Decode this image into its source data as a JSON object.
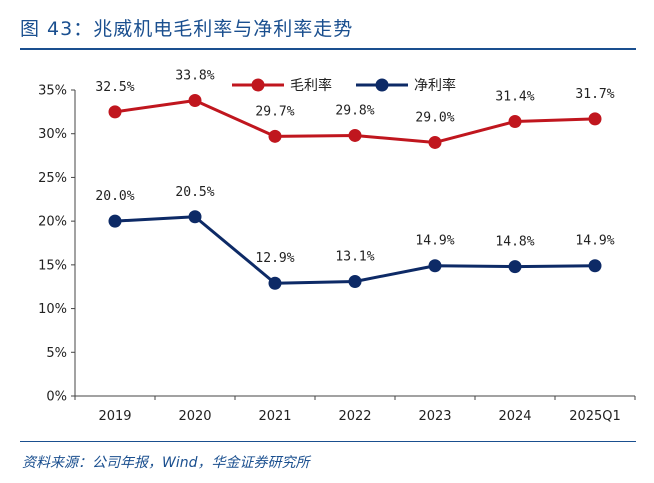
{
  "figure": {
    "title": "图 43：兆威机电毛利率与净利率走势",
    "source": "资料来源：公司年报，Wind，华金证券研究所"
  },
  "chart_data": {
    "type": "line",
    "title": "",
    "xlabel": "",
    "ylabel": "",
    "categories": [
      "2019",
      "2020",
      "2021",
      "2022",
      "2023",
      "2024",
      "2025Q1"
    ],
    "yticks": [
      "0%",
      "5%",
      "10%",
      "15%",
      "20%",
      "25%",
      "30%",
      "35%"
    ],
    "ylim": [
      0,
      35
    ],
    "grid": false,
    "legend_position": "top-center",
    "series": [
      {
        "name": "毛利率",
        "color": "#c0161e",
        "values": [
          32.5,
          33.8,
          29.7,
          29.8,
          29.0,
          31.4,
          31.7
        ],
        "labels": [
          "32.5%",
          "33.8%",
          "29.7%",
          "29.8%",
          "29.0%",
          "31.4%",
          "31.7%"
        ]
      },
      {
        "name": "净利率",
        "color": "#0d2a66",
        "values": [
          20.0,
          20.5,
          12.9,
          13.1,
          14.9,
          14.8,
          14.9
        ],
        "labels": [
          "20.0%",
          "20.5%",
          "12.9%",
          "13.1%",
          "14.9%",
          "14.8%",
          "14.9%"
        ]
      }
    ]
  }
}
